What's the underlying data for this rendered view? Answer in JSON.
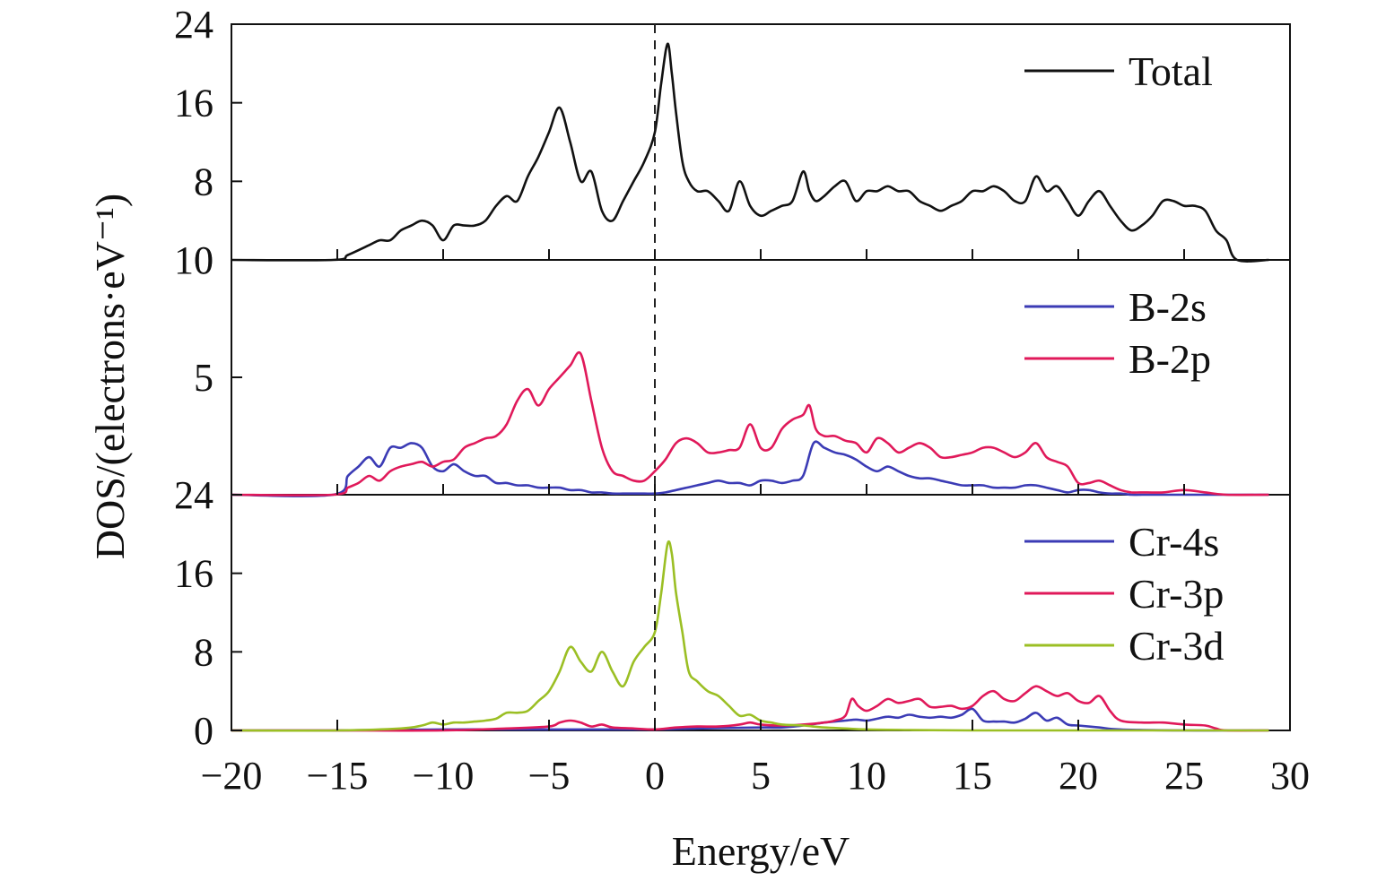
{
  "figure": {
    "xlabel": "Energy/eV",
    "ylabel": "DOS/(electrons·eV⁻¹)",
    "xlim": [
      -20,
      30
    ],
    "xticks": [
      "−20",
      "−15",
      "−10",
      "−5",
      "0",
      "5",
      "10",
      "15",
      "20",
      "25",
      "30"
    ],
    "fermi_line": {
      "x": 0,
      "style": "dashed"
    }
  },
  "chart_data": [
    {
      "type": "line",
      "panel": "top",
      "ylim": [
        0,
        24
      ],
      "yticks": [
        0,
        8,
        16,
        24
      ],
      "ytick_labels": [
        "0",
        "8",
        "16",
        "24"
      ],
      "series": [
        {
          "name": "Total",
          "color": "#111111",
          "x": [
            -20,
            -15.2,
            -14.5,
            -13.5,
            -13,
            -12.5,
            -12,
            -11.5,
            -11,
            -10.5,
            -10,
            -9.5,
            -9,
            -8.5,
            -8,
            -7.5,
            -7,
            -6.5,
            -6,
            -5.5,
            -5,
            -4.5,
            -4,
            -3.5,
            -3,
            -2.5,
            -2,
            -1.5,
            -1,
            -0.5,
            0,
            0.3,
            0.6,
            0.8,
            1,
            1.3,
            1.6,
            2,
            2.5,
            3,
            3.5,
            4,
            4.5,
            5,
            5.5,
            6,
            6.5,
            7,
            7.3,
            7.6,
            8,
            8.5,
            9,
            9.5,
            10,
            10.5,
            11,
            11.5,
            12,
            12.5,
            13,
            13.5,
            14,
            14.5,
            15,
            15.5,
            16,
            16.5,
            17,
            17.5,
            18,
            18.5,
            19,
            19.5,
            20,
            20.5,
            21,
            21.5,
            22,
            22.5,
            23,
            23.5,
            24,
            24.5,
            25,
            25.5,
            26,
            26.5,
            27,
            27.5,
            29
          ],
          "y": [
            0,
            0,
            0.5,
            1.5,
            2,
            2,
            3,
            3.5,
            4,
            3.5,
            2,
            3.5,
            3.5,
            3.5,
            4,
            5.5,
            6.5,
            6,
            8.5,
            10.5,
            13,
            15.5,
            12,
            8,
            9,
            5,
            4,
            6,
            8,
            10,
            13,
            18,
            22,
            19,
            15,
            10,
            8,
            7,
            7,
            6,
            5,
            8,
            5.5,
            4.5,
            5,
            5.5,
            6,
            9,
            7,
            6,
            6.5,
            7.5,
            8,
            6,
            7,
            7,
            7.5,
            7,
            7,
            6,
            5.5,
            5,
            5.5,
            6,
            7,
            7,
            7.5,
            7,
            6,
            6,
            8.5,
            7,
            7.5,
            6,
            4.5,
            6,
            7,
            5.5,
            4,
            3,
            3.5,
            4.5,
            6,
            6,
            5.5,
            5.5,
            5,
            3,
            2,
            0,
            0
          ]
        }
      ]
    },
    {
      "type": "line",
      "panel": "middle",
      "ylim": [
        0,
        10
      ],
      "yticks": [
        0,
        5,
        10
      ],
      "ytick_labels": [
        "",
        "5",
        "10"
      ],
      "series": [
        {
          "name": "B-2s",
          "color": "#3b3bb5",
          "x": [
            -20,
            -15.2,
            -14.5,
            -14,
            -13.5,
            -13,
            -12.5,
            -12,
            -11.5,
            -11,
            -10.5,
            -10,
            -9.5,
            -9,
            -8.5,
            -8,
            -7.5,
            -7,
            -6.5,
            -6,
            -5.5,
            -5,
            -4.5,
            -4,
            -3.5,
            -3,
            -2.5,
            -2,
            -1.5,
            -1,
            -0.5,
            0,
            0.5,
            1,
            1.5,
            2,
            2.5,
            3,
            3.5,
            4,
            4.5,
            5,
            5.5,
            6,
            6.5,
            7,
            7.5,
            8,
            8.5,
            9,
            9.5,
            10,
            10.5,
            11,
            11.5,
            12,
            12.5,
            13,
            13.5,
            14,
            14.5,
            15,
            15.5,
            16,
            16.5,
            17,
            17.5,
            18,
            18.5,
            19,
            19.5,
            20,
            20.5,
            21,
            21.5,
            22,
            22.5,
            23,
            24,
            25,
            26,
            27,
            29
          ],
          "y": [
            0,
            0,
            0.8,
            1.2,
            1.6,
            1.2,
            2,
            2,
            2.2,
            2,
            1.2,
            1,
            1.3,
            1,
            0.8,
            0.8,
            0.5,
            0.5,
            0.4,
            0.4,
            0.3,
            0.3,
            0.3,
            0.2,
            0.2,
            0.1,
            0.1,
            0.05,
            0.05,
            0.05,
            0.05,
            0.05,
            0.1,
            0.2,
            0.3,
            0.4,
            0.5,
            0.6,
            0.5,
            0.5,
            0.4,
            0.6,
            0.6,
            0.5,
            0.6,
            0.8,
            2.2,
            2,
            1.8,
            1.7,
            1.5,
            1.2,
            1,
            1.2,
            1,
            0.8,
            0.7,
            0.7,
            0.6,
            0.5,
            0.4,
            0.4,
            0.4,
            0.3,
            0.3,
            0.3,
            0.4,
            0.4,
            0.3,
            0.2,
            0.1,
            0.2,
            0.2,
            0.1,
            0.05,
            0.05,
            0,
            0,
            0,
            0,
            0,
            0,
            0
          ]
        },
        {
          "name": "B-2p",
          "color": "#e0195a",
          "x": [
            -20,
            -15.2,
            -14.5,
            -14,
            -13.5,
            -13,
            -12.5,
            -12,
            -11.5,
            -11,
            -10.5,
            -10,
            -9.5,
            -9,
            -8.5,
            -8,
            -7.5,
            -7,
            -6.5,
            -6,
            -5.5,
            -5,
            -4.5,
            -4,
            -3.5,
            -3,
            -2.5,
            -2,
            -1.5,
            -1,
            -0.5,
            0,
            0.5,
            1,
            1.5,
            2,
            2.5,
            3,
            3.5,
            4,
            4.5,
            5,
            5.5,
            6,
            6.5,
            7,
            7.3,
            7.6,
            8,
            8.5,
            9,
            9.5,
            10,
            10.5,
            11,
            11.5,
            12,
            12.5,
            13,
            13.5,
            14,
            14.5,
            15,
            15.5,
            16,
            16.5,
            17,
            17.5,
            18,
            18.5,
            19,
            19.5,
            20,
            20.5,
            21,
            21.5,
            22,
            22.5,
            23,
            24,
            25,
            26,
            27,
            29
          ],
          "y": [
            0,
            0,
            0.3,
            0.5,
            0.8,
            0.6,
            1,
            1.2,
            1.3,
            1.4,
            1.2,
            1.4,
            1.5,
            2,
            2.2,
            2.4,
            2.5,
            3,
            4,
            4.5,
            3.8,
            4.5,
            5,
            5.5,
            6,
            4,
            2,
            1,
            0.8,
            0.6,
            0.6,
            1,
            1.5,
            2.2,
            2.4,
            2.2,
            1.8,
            1.8,
            1.9,
            2,
            3,
            2,
            2,
            2.8,
            3.2,
            3.4,
            3.8,
            2.8,
            2.5,
            2.5,
            2.3,
            2.2,
            1.8,
            2.4,
            2.2,
            1.8,
            2,
            2.2,
            2,
            1.6,
            1.6,
            1.7,
            1.8,
            2,
            2,
            1.8,
            1.6,
            1.8,
            2.2,
            1.6,
            1.4,
            1.2,
            0.5,
            0.5,
            0.6,
            0.4,
            0.2,
            0.1,
            0.1,
            0.1,
            0.2,
            0.1,
            0,
            0
          ]
        }
      ]
    },
    {
      "type": "line",
      "panel": "bottom",
      "ylim": [
        0,
        24
      ],
      "yticks": [
        0,
        8,
        16,
        24
      ],
      "ytick_labels": [
        "0",
        "8",
        "16",
        "24"
      ],
      "series": [
        {
          "name": "Cr-4s",
          "color": "#3b3bb5",
          "x": [
            -20,
            -15,
            -10,
            -5,
            -4,
            -2,
            0,
            2,
            5,
            6,
            7,
            8,
            8.5,
            9,
            9.5,
            10,
            10.5,
            11,
            11.5,
            12,
            12.5,
            13,
            13.5,
            14,
            14.5,
            15,
            15.5,
            16,
            16.5,
            17,
            17.5,
            18,
            18.5,
            19,
            19.5,
            20,
            21,
            22,
            25,
            27,
            29
          ],
          "y": [
            0,
            0,
            0.1,
            0.1,
            0.1,
            0.1,
            0.1,
            0.2,
            0.3,
            0.3,
            0.5,
            0.8,
            0.9,
            1,
            1.1,
            1,
            1.2,
            1.4,
            1.3,
            1.6,
            1.4,
            1.3,
            1.4,
            1.3,
            1.6,
            2.2,
            1,
            0.9,
            0.9,
            0.8,
            1.2,
            1.8,
            1,
            1.3,
            0.6,
            0.5,
            0.3,
            0.1,
            0,
            0,
            0
          ]
        },
        {
          "name": "Cr-3p",
          "color": "#e0195a",
          "x": [
            -20,
            -15,
            -10,
            -7,
            -5,
            -4.5,
            -4,
            -3.5,
            -3,
            -2.5,
            -2,
            -1,
            0,
            1,
            2,
            3,
            4,
            4.5,
            5,
            6,
            7,
            8,
            8.5,
            9,
            9.3,
            9.6,
            10,
            10.5,
            11,
            11.5,
            12,
            12.5,
            13,
            13.5,
            14,
            14.5,
            15,
            15.5,
            16,
            16.5,
            17,
            17.5,
            18,
            18.5,
            19,
            19.5,
            20,
            20.5,
            21,
            21.5,
            22,
            23,
            24,
            25,
            26,
            26.5,
            27,
            29
          ],
          "y": [
            0,
            0,
            0,
            0.2,
            0.4,
            0.8,
            1,
            0.8,
            0.4,
            0.6,
            0.3,
            0.2,
            0.1,
            0.3,
            0.4,
            0.4,
            0.6,
            0.8,
            0.6,
            0.5,
            0.6,
            0.8,
            1,
            1.5,
            3.2,
            2.5,
            2,
            2.5,
            3.2,
            2.8,
            3,
            3.2,
            2.4,
            2.4,
            2.5,
            2.2,
            2.5,
            3.5,
            4,
            3.2,
            3,
            3.8,
            4.5,
            4,
            3.5,
            3.8,
            3,
            2.8,
            3.5,
            2,
            1,
            0.8,
            0.8,
            0.6,
            0.5,
            0.2,
            0,
            0
          ]
        },
        {
          "name": "Cr-3d",
          "color": "#9bbf24",
          "x": [
            -20,
            -15,
            -12,
            -11,
            -10.5,
            -10,
            -9.5,
            -9,
            -8.5,
            -8,
            -7.5,
            -7,
            -6.5,
            -6,
            -5.5,
            -5,
            -4.5,
            -4,
            -3.5,
            -3,
            -2.5,
            -2,
            -1.5,
            -1,
            -0.5,
            0,
            0.3,
            0.6,
            0.8,
            1,
            1.3,
            1.6,
            2,
            2.5,
            3,
            3.5,
            4,
            4.5,
            5,
            5.5,
            6,
            7,
            8,
            9,
            10,
            12,
            15,
            20,
            29
          ],
          "y": [
            0,
            0,
            0.2,
            0.5,
            0.8,
            0.6,
            0.8,
            0.8,
            0.9,
            1,
            1.2,
            1.8,
            1.8,
            2,
            3,
            4,
            6,
            8.5,
            7,
            6,
            8,
            6,
            4.5,
            7,
            8.5,
            10,
            14,
            19,
            18,
            14,
            10,
            6,
            5,
            4,
            3.5,
            2.5,
            1.5,
            1.6,
            1,
            0.8,
            0.6,
            0.5,
            0.3,
            0.2,
            0.1,
            0.05,
            0,
            0,
            0
          ]
        }
      ]
    }
  ]
}
